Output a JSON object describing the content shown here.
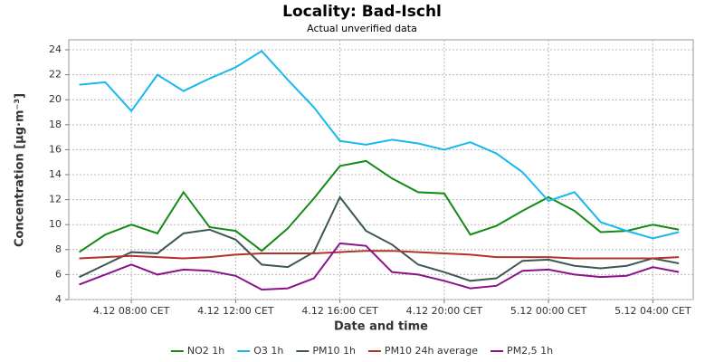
{
  "chart_data": {
    "type": "line",
    "title": "Locality: Bad-Ischl",
    "subtitle": "Actual unverified data",
    "x_label": "Date and time",
    "y_label": "Concentration [µg·m⁻³]",
    "x": [
      6,
      7,
      8,
      9,
      10,
      11,
      12,
      13,
      14,
      15,
      16,
      17,
      18,
      19,
      20,
      21,
      22,
      23,
      24,
      25,
      26,
      27,
      28,
      29
    ],
    "xlim": [
      5.6,
      29.55
    ],
    "xticks": [
      {
        "value": 8,
        "label": "4.12 08:00 CET"
      },
      {
        "value": 12,
        "label": "4.12 12:00 CET"
      },
      {
        "value": 16,
        "label": "4.12 16:00 CET"
      },
      {
        "value": 20,
        "label": "4.12 20:00 CET"
      },
      {
        "value": 24,
        "label": "5.12 00:00 CET"
      },
      {
        "value": 28,
        "label": "5.12 04:00 CET"
      }
    ],
    "ylim": [
      4,
      24.8
    ],
    "yticks": [
      4,
      6,
      8,
      10,
      12,
      14,
      16,
      18,
      20,
      22,
      24
    ],
    "grid": true,
    "legend": "bottom",
    "series": [
      {
        "name": "NO2 1h",
        "color": "#138a13",
        "values": [
          7.8,
          9.2,
          10.0,
          9.3,
          12.6,
          9.8,
          9.5,
          7.9,
          9.7,
          12.1,
          14.7,
          15.1,
          13.7,
          12.6,
          12.5,
          9.2,
          9.9,
          11.1,
          12.2,
          11.1,
          9.4,
          9.5,
          10.0,
          9.6
        ]
      },
      {
        "name": "O3 1h",
        "color": "#1ab8ee",
        "values": [
          21.2,
          21.4,
          19.1,
          22.0,
          20.7,
          21.7,
          22.6,
          23.9,
          21.6,
          19.4,
          16.7,
          16.4,
          16.8,
          16.5,
          16.0,
          16.6,
          15.7,
          14.2,
          11.9,
          12.6,
          10.2,
          9.5,
          8.9,
          9.4
        ]
      },
      {
        "name": "PM10 1h",
        "color": "#3d5656",
        "values": [
          5.8,
          6.8,
          7.8,
          7.7,
          9.3,
          9.6,
          8.8,
          6.8,
          6.6,
          7.8,
          12.2,
          9.5,
          8.4,
          6.8,
          6.2,
          5.5,
          5.7,
          7.1,
          7.2,
          6.7,
          6.5,
          6.7,
          7.3,
          6.9
        ]
      },
      {
        "name": "PM10 24h average",
        "color": "#b0342c",
        "values": [
          7.3,
          7.4,
          7.5,
          7.4,
          7.3,
          7.4,
          7.6,
          7.7,
          7.7,
          7.7,
          7.8,
          7.9,
          7.9,
          7.8,
          7.7,
          7.6,
          7.4,
          7.4,
          7.4,
          7.3,
          7.3,
          7.3,
          7.3,
          7.4
        ]
      },
      {
        "name": "PM2,5 1h",
        "color": "#8b128b",
        "values": [
          5.2,
          6.0,
          6.8,
          6.0,
          6.4,
          6.3,
          5.9,
          4.8,
          4.9,
          5.7,
          8.5,
          8.3,
          6.2,
          6.0,
          5.5,
          4.9,
          5.1,
          6.3,
          6.4,
          6.0,
          5.8,
          5.9,
          6.6,
          6.2
        ]
      }
    ]
  }
}
